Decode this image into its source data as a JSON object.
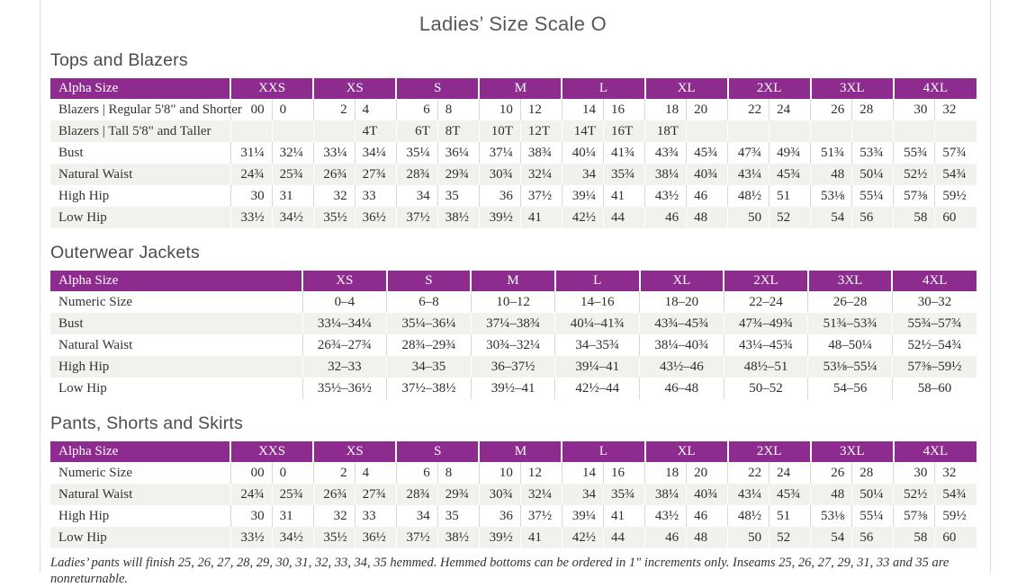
{
  "page": {
    "title": "Ladies’ Size Scale O",
    "footnote": "Ladies’ pants will finish 25, 26, 27, 28, 29, 30, 31, 32, 33, 34, 35 hemmed. Hemmed bottoms can be ordered in 1\" increments only. Inseams 25, 26, 27, 29, 31, 33 and 35 are nonreturnable."
  },
  "colors": {
    "header_purple": "#8D2B8E",
    "alt_row_gray": "#F2F1EE",
    "divider_gray": "#DBD8D3",
    "title_gray": "#585858"
  },
  "tables": [
    {
      "section_title": "Tops and Blazers",
      "type": "paired",
      "header_label": "Alpha Size",
      "groups": [
        "XXS",
        "XS",
        "S",
        "M",
        "L",
        "XL",
        "2XL",
        "3XL",
        "4XL"
      ],
      "rows": [
        {
          "label": "Blazers  |  Regular 5'8\" and Shorter",
          "values": [
            "00",
            "0",
            "2",
            "4",
            "6",
            "8",
            "10",
            "12",
            "14",
            "16",
            "18",
            "20",
            "22",
            "24",
            "26",
            "28",
            "30",
            "32"
          ]
        },
        {
          "label": "Blazers  |  Tall 5'8\" and Taller",
          "values": [
            "",
            "",
            "",
            "4T",
            "6T",
            "8T",
            "10T",
            "12T",
            "14T",
            "16T",
            "18T",
            "",
            "",
            "",
            "",
            "",
            "",
            ""
          ]
        },
        {
          "label": "Bust",
          "values": [
            "31¼",
            "32¼",
            "33¼",
            "34¼",
            "35¼",
            "36¼",
            "37¼",
            "38¾",
            "40¼",
            "41¾",
            "43¾",
            "45¾",
            "47¾",
            "49¾",
            "51¾",
            "53¾",
            "55¾",
            "57¾"
          ]
        },
        {
          "label": "Natural Waist",
          "values": [
            "24¾",
            "25¾",
            "26¾",
            "27¾",
            "28¾",
            "29¾",
            "30¾",
            "32¼",
            "34",
            "35¾",
            "38¼",
            "40¾",
            "43¼",
            "45¾",
            "48",
            "50¼",
            "52½",
            "54¾"
          ]
        },
        {
          "label": "High Hip",
          "values": [
            "30",
            "31",
            "32",
            "33",
            "34",
            "35",
            "36",
            "37½",
            "39¼",
            "41",
            "43½",
            "46",
            "48½",
            "51",
            "53⅛",
            "55¼",
            "57⅜",
            "59½"
          ]
        },
        {
          "label": "Low Hip",
          "values": [
            "33½",
            "34½",
            "35½",
            "36½",
            "37½",
            "38½",
            "39½",
            "41",
            "42½",
            "44",
            "46",
            "48",
            "50",
            "52",
            "54",
            "56",
            "58",
            "60"
          ]
        }
      ]
    },
    {
      "section_title": "Outerwear Jackets",
      "type": "single",
      "header_label": "Alpha Size",
      "groups": [
        "XS",
        "S",
        "M",
        "L",
        "XL",
        "2XL",
        "3XL",
        "4XL"
      ],
      "rows": [
        {
          "label": "Numeric Size",
          "values": [
            "0–4",
            "6–8",
            "10–12",
            "14–16",
            "18–20",
            "22–24",
            "26–28",
            "30–32"
          ]
        },
        {
          "label": "Bust",
          "values": [
            "33¼–34¼",
            "35¼–36¼",
            "37¼–38¾",
            "40¼–41¾",
            "43¾–45¾",
            "47¾–49¾",
            "51¾–53¾",
            "55¾–57¾"
          ]
        },
        {
          "label": "Natural Waist",
          "values": [
            "26¾–27¾",
            "28¾–29¾",
            "30¾–32¼",
            "34–35¾",
            "38¼–40¾",
            "43¼–45¾",
            "48–50¼",
            "52½–54¾"
          ]
        },
        {
          "label": "High Hip",
          "values": [
            "32–33",
            "34–35",
            "36–37½",
            "39¼–41",
            "43½–46",
            "48½–51",
            "53⅛–55¼",
            "57⅜–59½"
          ]
        },
        {
          "label": "Low Hip",
          "values": [
            "35½–36½",
            "37½–38½",
            "39½–41",
            "42½–44",
            "46–48",
            "50–52",
            "54–56",
            "58–60"
          ]
        }
      ]
    },
    {
      "section_title": "Pants, Shorts and Skirts",
      "type": "paired",
      "header_label": "Alpha Size",
      "groups": [
        "XXS",
        "XS",
        "S",
        "M",
        "L",
        "XL",
        "2XL",
        "3XL",
        "4XL"
      ],
      "rows": [
        {
          "label": "Numeric Size",
          "values": [
            "00",
            "0",
            "2",
            "4",
            "6",
            "8",
            "10",
            "12",
            "14",
            "16",
            "18",
            "20",
            "22",
            "24",
            "26",
            "28",
            "30",
            "32"
          ]
        },
        {
          "label": "Natural Waist",
          "values": [
            "24¾",
            "25¾",
            "26¾",
            "27¾",
            "28¾",
            "29¾",
            "30¾",
            "32¼",
            "34",
            "35¾",
            "38¼",
            "40¾",
            "43¼",
            "45¾",
            "48",
            "50¼",
            "52½",
            "54¾"
          ]
        },
        {
          "label": "High Hip",
          "values": [
            "30",
            "31",
            "32",
            "33",
            "34",
            "35",
            "36",
            "37½",
            "39¼",
            "41",
            "43½",
            "46",
            "48½",
            "51",
            "53⅛",
            "55¼",
            "57⅜",
            "59½"
          ]
        },
        {
          "label": "Low Hip",
          "values": [
            "33½",
            "34½",
            "35½",
            "36½",
            "37½",
            "38½",
            "39½",
            "41",
            "42½",
            "44",
            "46",
            "48",
            "50",
            "52",
            "54",
            "56",
            "58",
            "60"
          ]
        }
      ]
    }
  ]
}
